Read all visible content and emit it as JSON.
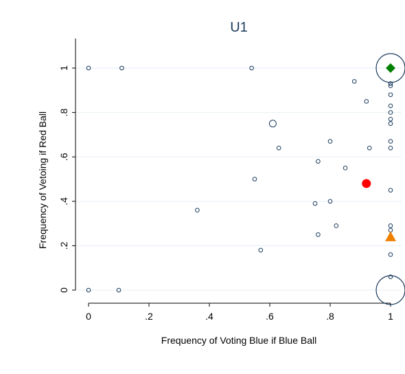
{
  "chart_data": {
    "type": "scatter",
    "title": "U1",
    "xlabel": "Frequency  of  Voting Blue if Blue Ball",
    "ylabel": "Frequency of Vetoing if Red Ball",
    "xlim": [
      0,
      1
    ],
    "ylim": [
      0,
      1
    ],
    "x_ticks": [
      0,
      0.2,
      0.4,
      0.6,
      0.8,
      1
    ],
    "x_tick_labels": [
      "0",
      ".2",
      ".4",
      ".6",
      ".8",
      "1"
    ],
    "y_ticks": [
      0,
      0.2,
      0.4,
      0.6,
      0.8,
      1
    ],
    "y_tick_labels": [
      "0",
      ".2",
      ".4",
      ".6",
      ".8",
      "1"
    ],
    "grid": "horizontal",
    "colors": {
      "markers": "#1a3a5c",
      "grid": "#e6eef5",
      "red_marker": "#ff0000",
      "green_marker": "#008000",
      "orange_marker": "#f08000"
    },
    "points": [
      {
        "x": 0.0,
        "y": 1.0,
        "size": 1
      },
      {
        "x": 0.11,
        "y": 1.0,
        "size": 1
      },
      {
        "x": 0.54,
        "y": 1.0,
        "size": 1
      },
      {
        "x": 0.0,
        "y": 0.0,
        "size": 1
      },
      {
        "x": 0.1,
        "y": 0.0,
        "size": 1
      },
      {
        "x": 0.36,
        "y": 0.36,
        "size": 1
      },
      {
        "x": 0.55,
        "y": 0.5,
        "size": 1
      },
      {
        "x": 0.57,
        "y": 0.18,
        "size": 1
      },
      {
        "x": 0.61,
        "y": 0.75,
        "size": 2
      },
      {
        "x": 0.63,
        "y": 0.64,
        "size": 1
      },
      {
        "x": 0.75,
        "y": 0.39,
        "size": 1
      },
      {
        "x": 0.76,
        "y": 0.58,
        "size": 1
      },
      {
        "x": 0.76,
        "y": 0.25,
        "size": 1
      },
      {
        "x": 0.8,
        "y": 0.67,
        "size": 1
      },
      {
        "x": 0.8,
        "y": 0.4,
        "size": 1
      },
      {
        "x": 0.82,
        "y": 0.29,
        "size": 1
      },
      {
        "x": 0.85,
        "y": 0.55,
        "size": 1
      },
      {
        "x": 0.88,
        "y": 0.94,
        "size": 1
      },
      {
        "x": 0.92,
        "y": 0.85,
        "size": 1
      },
      {
        "x": 0.93,
        "y": 0.64,
        "size": 1
      },
      {
        "x": 1.0,
        "y": 1.0,
        "size": 4
      },
      {
        "x": 1.0,
        "y": 0.93,
        "size": 1
      },
      {
        "x": 1.0,
        "y": 0.92,
        "size": 1
      },
      {
        "x": 1.0,
        "y": 0.88,
        "size": 1
      },
      {
        "x": 1.0,
        "y": 0.83,
        "size": 1
      },
      {
        "x": 1.0,
        "y": 0.8,
        "size": 1
      },
      {
        "x": 1.0,
        "y": 0.77,
        "size": 1
      },
      {
        "x": 1.0,
        "y": 0.75,
        "size": 1
      },
      {
        "x": 1.0,
        "y": 0.67,
        "size": 1
      },
      {
        "x": 1.0,
        "y": 0.64,
        "size": 1
      },
      {
        "x": 1.0,
        "y": 0.45,
        "size": 1
      },
      {
        "x": 1.0,
        "y": 0.29,
        "size": 1
      },
      {
        "x": 1.0,
        "y": 0.27,
        "size": 1
      },
      {
        "x": 1.0,
        "y": 0.16,
        "size": 1
      },
      {
        "x": 1.0,
        "y": 0.06,
        "size": 1
      },
      {
        "x": 1.0,
        "y": 0.0,
        "size": 4
      }
    ],
    "special_markers": [
      {
        "shape": "circle",
        "x": 0.92,
        "y": 0.48,
        "color": "#ff0000"
      },
      {
        "shape": "diamond",
        "x": 1.0,
        "y": 1.0,
        "color": "#008000"
      },
      {
        "shape": "triangle",
        "x": 1.0,
        "y": 0.24,
        "color": "#f08000"
      }
    ]
  }
}
